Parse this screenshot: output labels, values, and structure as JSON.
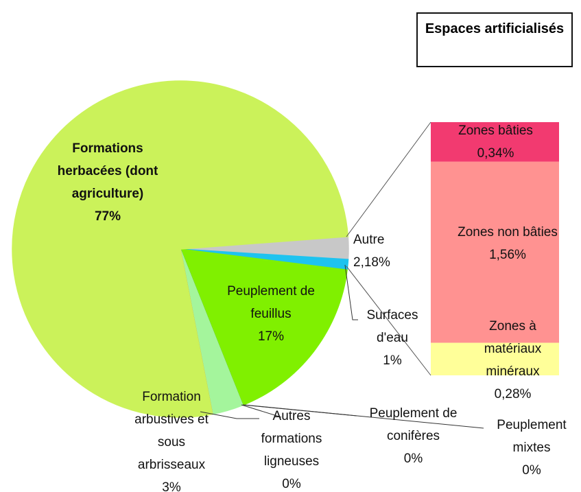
{
  "chart_data": {
    "type": "pie",
    "categories": [
      "Autre",
      "Surfaces d'eau",
      "Peuplement de feuillus",
      "Peuplement mixtes",
      "Peuplement de conifères",
      "Formation arbustives et sous arbrisseaux",
      "Autres formations ligneuses",
      "Formations herbacées (dont agriculture)"
    ],
    "values": [
      2.18,
      1,
      17,
      0,
      0,
      3,
      0,
      77
    ],
    "value_labels": [
      "2,18%",
      "1%",
      "17%",
      "0%",
      "0%",
      "3%",
      "0%",
      "77%"
    ],
    "colors": [
      "#c8c8c8",
      "#1ec3ef",
      "#80f000",
      "#0b6b1a",
      "#2f8f3a",
      "#a4f59c",
      "#e8442e",
      "#cbf25a"
    ],
    "bar": {
      "title": "Espaces artificialisés",
      "categories": [
        "Zones bâties",
        "Zones non bâties",
        "Zones à matériaux minéraux"
      ],
      "values": [
        0.34,
        1.56,
        0.28
      ],
      "value_labels": [
        "0,34%",
        "1,56%",
        "0,28%"
      ],
      "colors": [
        "#f23a70",
        "#ff9291",
        "#ffff99"
      ]
    }
  }
}
